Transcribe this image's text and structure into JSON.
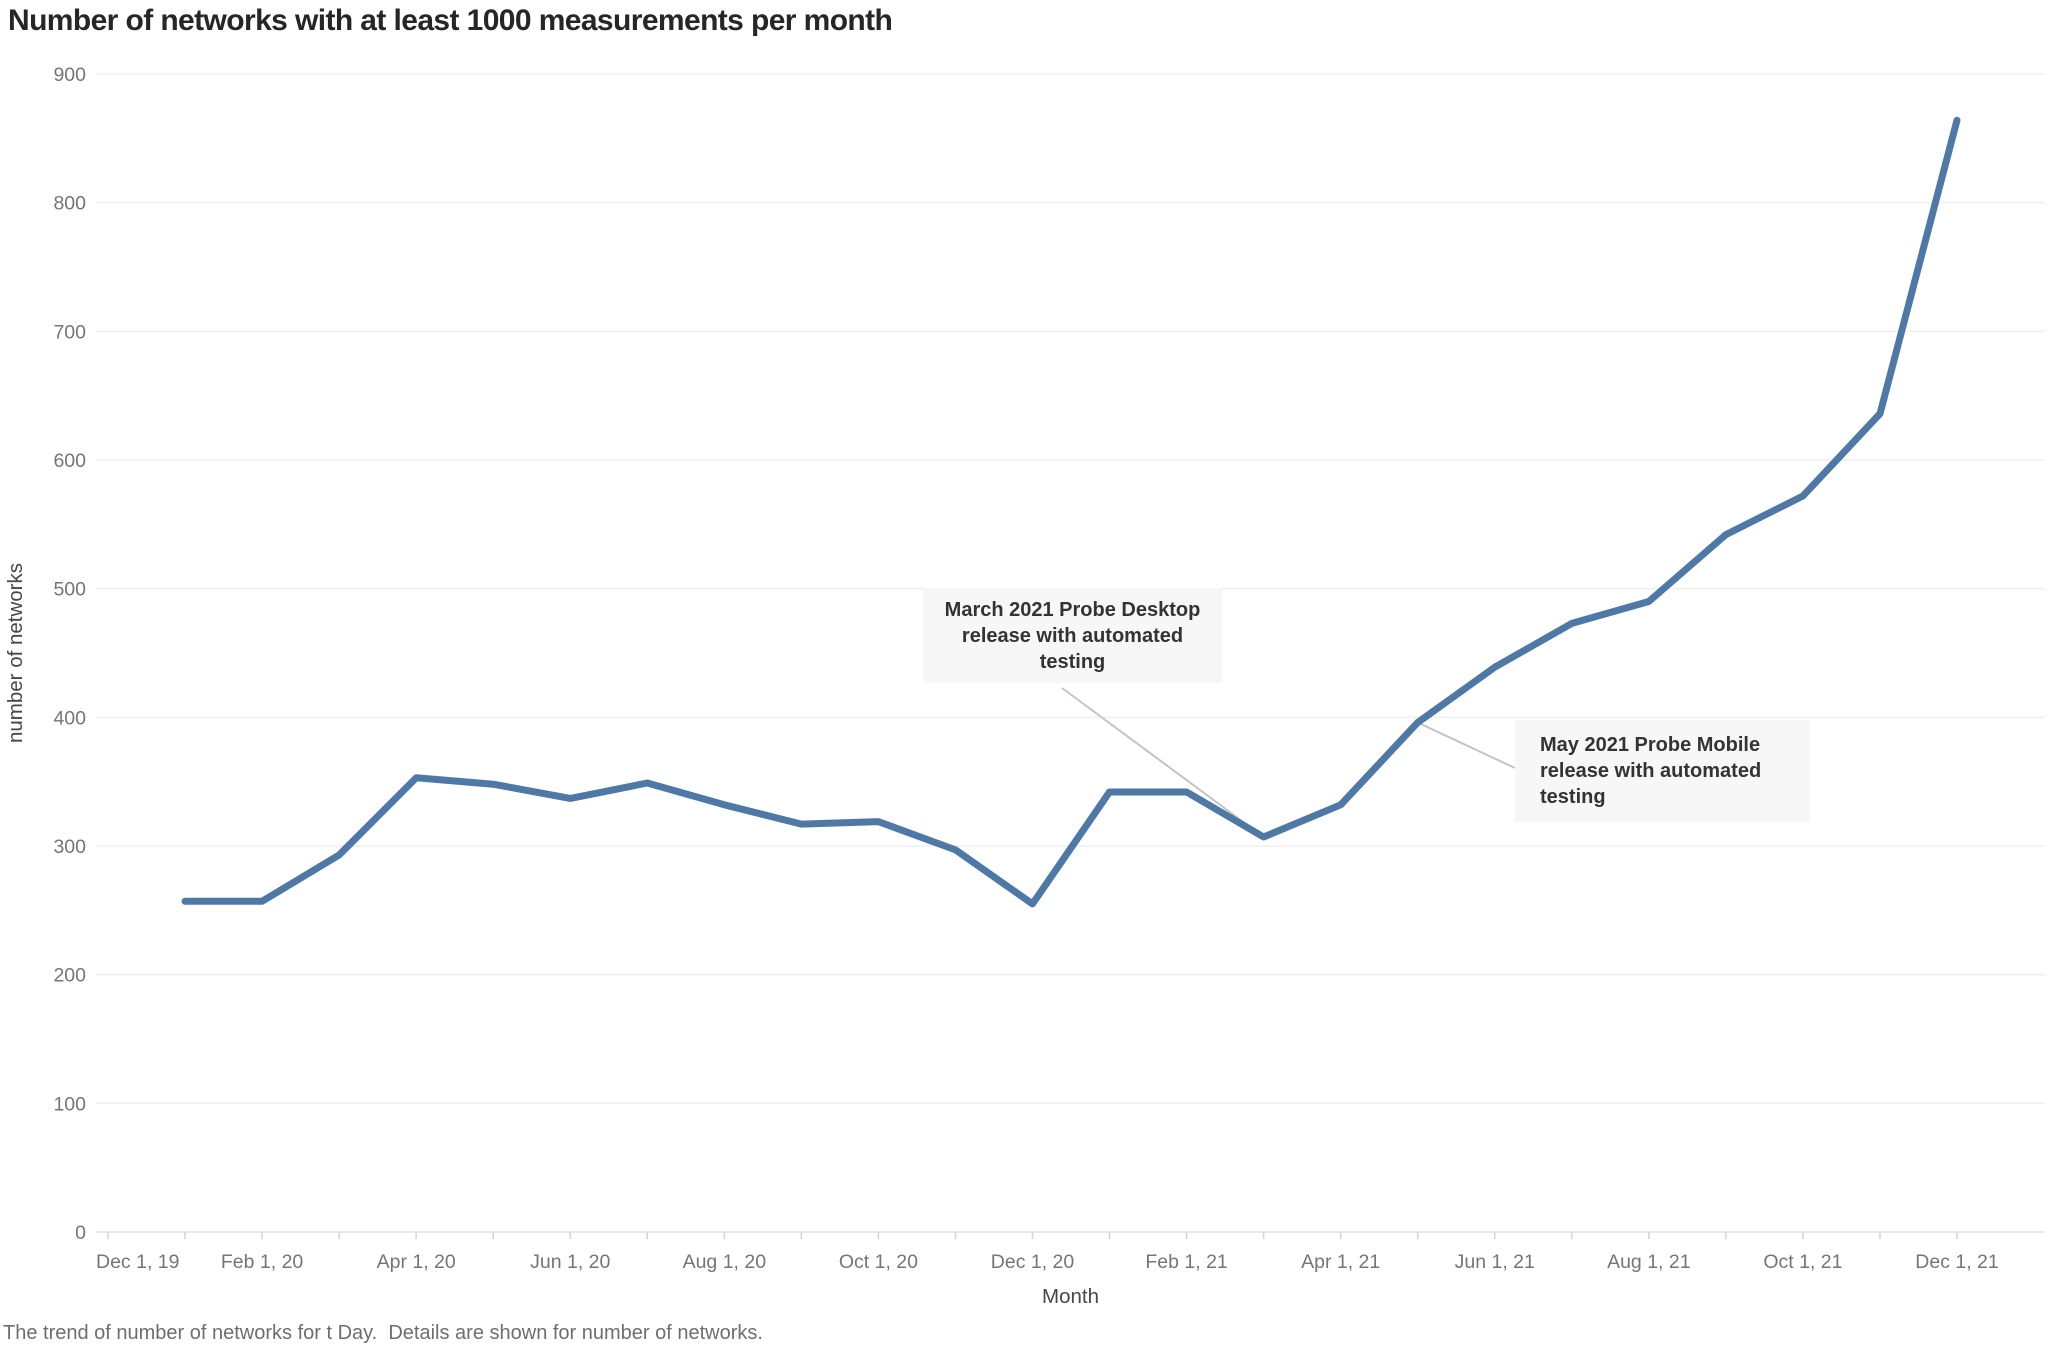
{
  "header": {
    "title": "Number of networks with at least 1000 measurements per month"
  },
  "footer": {
    "caption": "The trend of number of networks for t Day.  Details are shown for number of networks."
  },
  "chart_data": {
    "type": "line",
    "title": "Number of networks with at least 1000 measurements per month",
    "xlabel": "Month",
    "ylabel": "number of networks",
    "ylim": [
      0,
      900
    ],
    "yticks": [
      0,
      100,
      200,
      300,
      400,
      500,
      600,
      700,
      800,
      900
    ],
    "xticklabels": [
      "Dec 1, 19",
      "Feb 1, 20",
      "Apr 1, 20",
      "Jun 1, 20",
      "Aug 1, 20",
      "Oct 1, 20",
      "Dec 1, 20",
      "Feb 1, 21",
      "Apr 1, 21",
      "Jun 1, 21",
      "Aug 1, 21",
      "Oct 1, 21",
      "Dec 1, 21"
    ],
    "x": [
      "Jan 2020",
      "Feb 2020",
      "Mar 2020",
      "Apr 2020",
      "May 2020",
      "Jun 2020",
      "Jul 2020",
      "Aug 2020",
      "Sep 2020",
      "Oct 2020",
      "Nov 2020",
      "Dec 2020",
      "Jan 2021",
      "Feb 2021",
      "Mar 2021",
      "Apr 2021",
      "May 2021",
      "Jun 2021",
      "Jul 2021",
      "Aug 2021",
      "Sep 2021",
      "Oct 2021",
      "Nov 2021",
      "Dec 2021"
    ],
    "series": [
      {
        "name": "number of networks",
        "color": "#4e79a7",
        "values": [
          257,
          257,
          293,
          353,
          348,
          337,
          349,
          332,
          317,
          319,
          297,
          255,
          342,
          342,
          307,
          332,
          396,
          439,
          473,
          490,
          542,
          572,
          636,
          864
        ]
      }
    ],
    "grid": "horizontal",
    "legend": "none",
    "annotations": [
      {
        "text": "March 2021 Probe Desktop release with automated testing",
        "target_x": "Mar 2021",
        "target_value": 307
      },
      {
        "text": "May 2021 Probe Mobile release with automated testing",
        "target_x": "May 2021",
        "target_value": 396
      }
    ],
    "colors": {
      "line": "#4e79a7",
      "gridline": "#efefef",
      "axis_line": "#e3e3e3",
      "tick_label": "#757575",
      "axis_title": "#474747",
      "annotation_bg": "#f7f7f7",
      "annotation_text": "#333333",
      "leader_line": "#c4c4c4",
      "title_text": "#262626",
      "footer_text": "#6e6e6e"
    }
  }
}
